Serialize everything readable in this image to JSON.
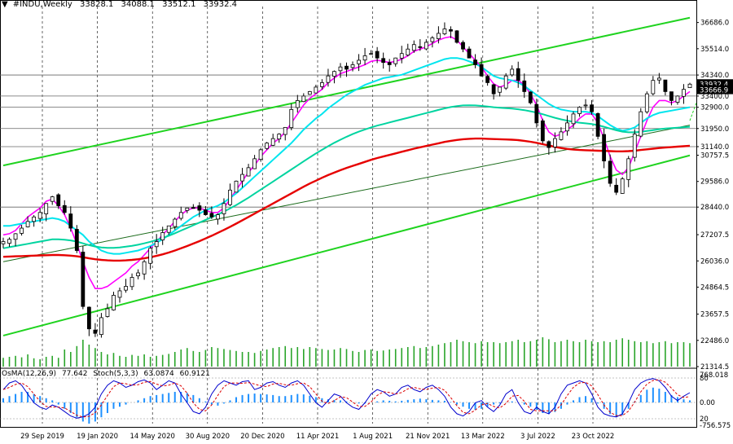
{
  "header": {
    "symbol": "#INDU,Weekly",
    "open": "33828.1",
    "high": "34088.1",
    "low": "33512.1",
    "close": "33932.4"
  },
  "osc_header": {
    "osma": "OsMA(12,26,9)",
    "osma_value": "77.642",
    "stoch": "Stoch(5,3,3)",
    "stoch_main": "63.0874",
    "stoch_signal": "60.9121"
  },
  "colors": {
    "background": "#ffffff",
    "grid": "#000000",
    "bull_candle": "#000000",
    "bear_candle": "#000000",
    "ma_fast": "#ff00ff",
    "ma_mid": "#00e5ee",
    "ma_slow_cyan": "#00d4a0",
    "ma_long": "#e60000",
    "channel": "#1fd31f",
    "volume": "#2aa52a",
    "osma_hist": "#1e90ff",
    "stoch_main": "#0000cd",
    "stoch_signal": "#dd0000",
    "current_price_box": "#000000"
  },
  "chart_data": {
    "type": "candlestick",
    "title": "#INDU,Weekly",
    "ylim": [
      21314,
      37400
    ],
    "y_ticks": [
      "36686.0",
      "35514.0",
      "34340.0",
      "33400.0",
      "32900.0",
      "31950.0",
      "31140.0",
      "30757.5",
      "29586.0",
      "28440.0",
      "27207.5",
      "26036.0",
      "24864.5",
      "23657.5",
      "22486.0",
      "21314.5"
    ],
    "price_levels": [
      34340.0,
      33400.0,
      32900.0,
      31950.0,
      31140.0,
      28440.0
    ],
    "current_price_labels": [
      "33932.4",
      "33666.9"
    ],
    "x_labels": [
      "29 Sep 2019",
      "19 Jan 2020",
      "14 May 2020",
      "30 Aug 2020",
      "20 Dec 2020",
      "11 Apr 2021",
      "1 Aug 2021",
      "21 Nov 2021",
      "13 Mar 2022",
      "3 Jul 2022",
      "23 Oct 2022"
    ],
    "close_path": [
      26900,
      27000,
      27250,
      27500,
      27800,
      28000,
      28200,
      28600,
      28900,
      28500,
      28200,
      27500,
      26500,
      24000,
      23000,
      22800,
      23500,
      23900,
      24500,
      24700,
      24900,
      25300,
      25500,
      26000,
      26600,
      26900,
      27300,
      27600,
      27900,
      28200,
      28400,
      28400,
      28300,
      28100,
      28000,
      28100,
      28600,
      29200,
      29600,
      29900,
      30200,
      30600,
      31000,
      31300,
      31500,
      31700,
      32000,
      32800,
      33200,
      33400,
      33600,
      33800,
      34000,
      34300,
      34500,
      34700,
      34600,
      34800,
      35000,
      35200,
      35300,
      35100,
      34900,
      34800,
      35100,
      35300,
      35500,
      35700,
      35600,
      35800,
      36000,
      36200,
      36400,
      36300,
      35800,
      35500,
      35100,
      34800,
      34300,
      34000,
      33500,
      33800,
      34300,
      34600,
      34100,
      33600,
      33100,
      32200,
      31400,
      31100,
      31500,
      31800,
      32200,
      32600,
      32900,
      33000,
      32700,
      31600,
      30500,
      29500,
      29100,
      29700,
      30600,
      31700,
      32700,
      33500,
      34100,
      34200,
      33600,
      33200,
      33400,
      33700,
      33932
    ],
    "series": [
      {
        "name": "MA fast",
        "values": [
          27200,
          27250,
          27400,
          27700,
          28000,
          28200,
          28400,
          28700,
          28800,
          28500,
          28100,
          27500,
          26800,
          26000,
          25300,
          24800,
          24800,
          24900,
          25100,
          25300,
          25500,
          25800,
          26000,
          26300,
          26600,
          26900,
          27200,
          27500,
          27800,
          28100,
          28300,
          28400,
          28400,
          28300,
          28200,
          28200,
          28400,
          28800,
          29200,
          29600,
          30000,
          30300,
          30700,
          31000,
          31300,
          31500,
          31800,
          32200,
          32600,
          33000,
          33300,
          33500,
          33700,
          34000,
          34200,
          34400,
          34500,
          34600,
          34700,
          34800,
          34950,
          35000,
          34950,
          34900,
          34950,
          35050,
          35200,
          35400,
          35500,
          35600,
          35750,
          35900,
          36000,
          36050,
          35900,
          35600,
          35300,
          35000,
          34700,
          34300,
          33950,
          33800,
          33900,
          34100,
          34100,
          33900,
          33500,
          33000,
          32300,
          31800,
          31600,
          31700,
          31900,
          32100,
          32400,
          32600,
          32600,
          32200,
          31500,
          30700,
          30100,
          29900,
          30200,
          30900,
          31600,
          32300,
          32900,
          33200,
          33200,
          33100,
          33200,
          33400,
          33600
        ]
      },
      {
        "name": "MA mid",
        "values": [
          27600,
          27600,
          27650,
          27700,
          27750,
          27800,
          27850,
          27900,
          27950,
          27900,
          27800,
          27600,
          27400,
          27200,
          26900,
          26700,
          26500,
          26400,
          26350,
          26350,
          26400,
          26450,
          26500,
          26600,
          26700,
          26850,
          27000,
          27200,
          27400,
          27600,
          27800,
          28000,
          28150,
          28300,
          28400,
          28500,
          28650,
          28850,
          29050,
          29300,
          29550,
          29800,
          30050,
          30300,
          30550,
          30800,
          31050,
          31300,
          31600,
          31900,
          32150,
          32400,
          32600,
          32850,
          33050,
          33250,
          33450,
          33600,
          33750,
          33900,
          34000,
          34100,
          34200,
          34250,
          34300,
          34350,
          34450,
          34550,
          34650,
          34750,
          34850,
          34950,
          35050,
          35100,
          35100,
          35050,
          34950,
          34850,
          34700,
          34500,
          34300,
          34200,
          34150,
          34100,
          34000,
          33850,
          33650,
          33450,
          33250,
          33050,
          32900,
          32800,
          32750,
          32700,
          32700,
          32700,
          32650,
          32500,
          32300,
          32100,
          31950,
          31850,
          31900,
          32000,
          32200,
          32400,
          32550,
          32650,
          32700,
          32750,
          32800,
          32850,
          32900
        ]
      },
      {
        "name": "MA slow",
        "values": [
          26600,
          26650,
          26700,
          26750,
          26800,
          26850,
          26900,
          26950,
          27000,
          27000,
          26980,
          26950,
          26900,
          26820,
          26740,
          26680,
          26640,
          26620,
          26620,
          26640,
          26670,
          26710,
          26760,
          26820,
          26890,
          26970,
          27060,
          27160,
          27270,
          27390,
          27510,
          27630,
          27750,
          27870,
          27990,
          28110,
          28240,
          28380,
          28530,
          28690,
          28860,
          29040,
          29220,
          29400,
          29580,
          29760,
          29940,
          30120,
          30300,
          30480,
          30660,
          30840,
          31000,
          31160,
          31310,
          31450,
          31580,
          31700,
          31810,
          31910,
          32000,
          32080,
          32150,
          32220,
          32290,
          32360,
          32430,
          32500,
          32570,
          32640,
          32710,
          32780,
          32850,
          32910,
          32950,
          32980,
          32990,
          32980,
          32960,
          32930,
          32900,
          32880,
          32860,
          32840,
          32810,
          32770,
          32720,
          32660,
          32590,
          32510,
          32430,
          32360,
          32300,
          32250,
          32210,
          32180,
          32150,
          32100,
          32030,
          31950,
          31870,
          31810,
          31780,
          31780,
          31800,
          31840,
          31880,
          31920,
          31950,
          31970,
          31990,
          32010,
          32030
        ]
      },
      {
        "name": "MA long",
        "values": [
          26220,
          26230,
          26240,
          26250,
          26260,
          26270,
          26280,
          26290,
          26300,
          26300,
          26290,
          26270,
          26240,
          26200,
          26150,
          26110,
          26080,
          26060,
          26050,
          26050,
          26060,
          26080,
          26110,
          26150,
          26200,
          26260,
          26330,
          26410,
          26500,
          26600,
          26700,
          26810,
          26920,
          27040,
          27160,
          27290,
          27420,
          27560,
          27700,
          27850,
          28000,
          28150,
          28300,
          28450,
          28600,
          28750,
          28900,
          29050,
          29200,
          29350,
          29490,
          29620,
          29750,
          29870,
          29980,
          30090,
          30190,
          30280,
          30370,
          30460,
          30550,
          30630,
          30700,
          30770,
          30840,
          30910,
          30980,
          31050,
          31110,
          31170,
          31230,
          31290,
          31350,
          31400,
          31440,
          31470,
          31490,
          31500,
          31500,
          31490,
          31480,
          31470,
          31460,
          31450,
          31430,
          31400,
          31360,
          31310,
          31250,
          31190,
          31130,
          31080,
          31040,
          31010,
          30990,
          30980,
          30970,
          30960,
          30950,
          30940,
          30930,
          30930,
          30940,
          30960,
          30990,
          31020,
          31050,
          31080,
          31100,
          31120,
          31140,
          31160,
          31180
        ]
      }
    ],
    "volume": [
      0.18,
      0.2,
      0.22,
      0.19,
      0.25,
      0.17,
      0.15,
      0.2,
      0.22,
      0.18,
      0.35,
      0.3,
      0.42,
      0.55,
      0.45,
      0.38,
      0.3,
      0.25,
      0.28,
      0.22,
      0.2,
      0.24,
      0.22,
      0.25,
      0.2,
      0.22,
      0.24,
      0.26,
      0.3,
      0.35,
      0.38,
      0.32,
      0.3,
      0.34,
      0.4,
      0.38,
      0.36,
      0.34,
      0.32,
      0.3,
      0.3,
      0.28,
      0.32,
      0.35,
      0.38,
      0.4,
      0.42,
      0.38,
      0.4,
      0.36,
      0.4,
      0.38,
      0.36,
      0.34,
      0.35,
      0.38,
      0.36,
      0.32,
      0.3,
      0.34,
      0.35,
      0.32,
      0.33,
      0.35,
      0.36,
      0.38,
      0.4,
      0.42,
      0.38,
      0.4,
      0.42,
      0.45,
      0.48,
      0.5,
      0.55,
      0.52,
      0.5,
      0.48,
      0.52,
      0.5,
      0.5,
      0.48,
      0.5,
      0.52,
      0.55,
      0.5,
      0.52,
      0.55,
      0.6,
      0.56,
      0.5,
      0.52,
      0.55,
      0.52,
      0.5,
      0.55,
      0.52,
      0.5,
      0.52,
      0.5,
      0.55,
      0.58,
      0.55,
      0.52,
      0.5,
      0.52,
      0.48,
      0.5,
      0.52,
      0.48,
      0.5,
      0.5,
      0.48
    ],
    "osc": {
      "ticks": [
        "768.018",
        "80",
        "0.00",
        "20",
        "-756.575"
      ],
      "osma": [
        0.2,
        0.3,
        0.4,
        0.5,
        0.5,
        0.4,
        0.3,
        0.2,
        0.1,
        -0.1,
        -0.3,
        -0.5,
        -0.7,
        -0.9,
        -1.0,
        -0.9,
        -0.7,
        -0.5,
        -0.3,
        -0.2,
        -0.1,
        0.0,
        0.1,
        0.2,
        0.3,
        0.35,
        0.4,
        0.45,
        0.5,
        0.5,
        0.45,
        0.35,
        0.2,
        0.05,
        -0.1,
        -0.15,
        -0.05,
        0.1,
        0.25,
        0.35,
        0.4,
        0.42,
        0.4,
        0.38,
        0.35,
        0.3,
        0.3,
        0.35,
        0.4,
        0.38,
        0.32,
        0.25,
        0.2,
        0.15,
        0.12,
        0.1,
        0.05,
        0.0,
        -0.05,
        -0.05,
        0.0,
        0.05,
        0.1,
        0.08,
        0.05,
        0.08,
        0.12,
        0.15,
        0.18,
        0.15,
        0.12,
        0.1,
        0.08,
        0.02,
        -0.1,
        -0.2,
        -0.3,
        -0.35,
        -0.3,
        -0.2,
        -0.1,
        -0.05,
        0.0,
        0.05,
        0.0,
        -0.1,
        -0.2,
        -0.35,
        -0.5,
        -0.55,
        -0.45,
        -0.3,
        -0.1,
        0.1,
        0.25,
        0.3,
        0.2,
        -0.05,
        -0.3,
        -0.55,
        -0.7,
        -0.6,
        -0.3,
        0.05,
        0.35,
        0.6,
        0.7,
        0.65,
        0.5,
        0.35,
        0.25,
        0.15,
        0.1
      ],
      "stoch_main": [
        70,
        85,
        90,
        80,
        60,
        40,
        30,
        25,
        35,
        30,
        20,
        10,
        5,
        8,
        15,
        30,
        60,
        80,
        90,
        85,
        75,
        80,
        88,
        92,
        85,
        70,
        80,
        90,
        85,
        60,
        40,
        20,
        15,
        30,
        60,
        80,
        90,
        85,
        80,
        88,
        90,
        70,
        75,
        85,
        88,
        80,
        75,
        85,
        90,
        80,
        60,
        40,
        30,
        45,
        60,
        55,
        40,
        30,
        25,
        40,
        60,
        70,
        65,
        55,
        60,
        75,
        80,
        70,
        65,
        75,
        80,
        70,
        55,
        30,
        15,
        10,
        20,
        40,
        45,
        30,
        20,
        35,
        60,
        70,
        40,
        20,
        15,
        30,
        20,
        15,
        30,
        60,
        80,
        85,
        90,
        85,
        60,
        30,
        15,
        10,
        8,
        15,
        40,
        70,
        85,
        92,
        95,
        90,
        75,
        55,
        45,
        55,
        63
      ]
    }
  }
}
